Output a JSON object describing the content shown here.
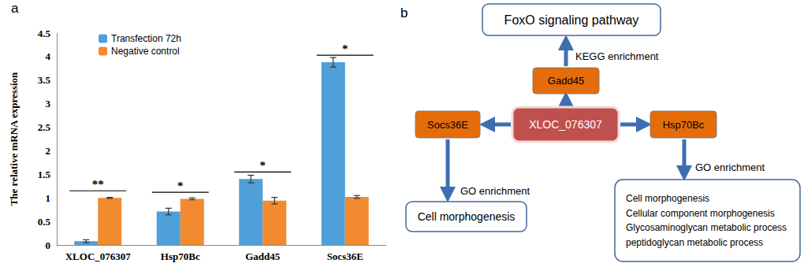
{
  "panel_labels": [
    "a",
    "b"
  ],
  "chart_data": {
    "type": "bar",
    "categories": [
      "XLOC_076307",
      "Hsp70Bc",
      "Gadd45",
      "Socs36E"
    ],
    "y_label": "The relative mRNA expression",
    "series": [
      {
        "name": "Transfection 72h",
        "color": "#4f9fd9",
        "values": [
          0.08,
          0.71,
          1.4,
          3.88
        ],
        "errors": [
          0.03,
          0.07,
          0.08,
          0.1
        ]
      },
      {
        "name": "Negative control",
        "color": "#f28a30",
        "values": [
          1.0,
          0.98,
          0.94,
          1.02
        ],
        "errors": [
          0.01,
          0.02,
          0.07,
          0.03
        ]
      }
    ],
    "significance": [
      {
        "category": "XLOC_076307",
        "label": "**",
        "y": 1.15
      },
      {
        "category": "Hsp70Bc",
        "label": "*",
        "y": 1.12
      },
      {
        "category": "Gadd45",
        "label": "*",
        "y": 1.55
      },
      {
        "category": "Socs36E",
        "label": "*",
        "y": 4.03
      }
    ],
    "ylim": [
      0,
      4.5
    ],
    "yticks": [
      0,
      0.5,
      1,
      1.5,
      2,
      2.5,
      3,
      3.5,
      4,
      4.5
    ],
    "grid": false,
    "legend": "top-left"
  },
  "diagram": {
    "nodes": [
      {
        "lines": [
          "XLOC_076307"
        ]
      },
      {
        "lines": [
          "Gadd45"
        ]
      },
      {
        "lines": [
          "FoxO signaling pathway"
        ]
      },
      {
        "lines": [
          "Socs36E"
        ]
      },
      {
        "lines": [
          "Cell morphogenesis"
        ]
      },
      {
        "lines": [
          "Hsp70Bc"
        ]
      },
      {
        "lines": [
          "Cell morphogenesis",
          "Cellular component morphogenesis",
          "Glycosaminoglycan metabolic process",
          "peptidoglycan metabolic process"
        ]
      }
    ],
    "edges": [
      {
        "from": 0,
        "to": 1
      },
      {
        "from": 1,
        "to": 2,
        "label": "KEGG enrichment"
      },
      {
        "from": 0,
        "to": 3
      },
      {
        "from": 3,
        "to": 4,
        "label": "GO enrichment"
      },
      {
        "from": 0,
        "to": 5
      },
      {
        "from": 5,
        "to": 6,
        "label": "GO enrichment"
      }
    ]
  }
}
